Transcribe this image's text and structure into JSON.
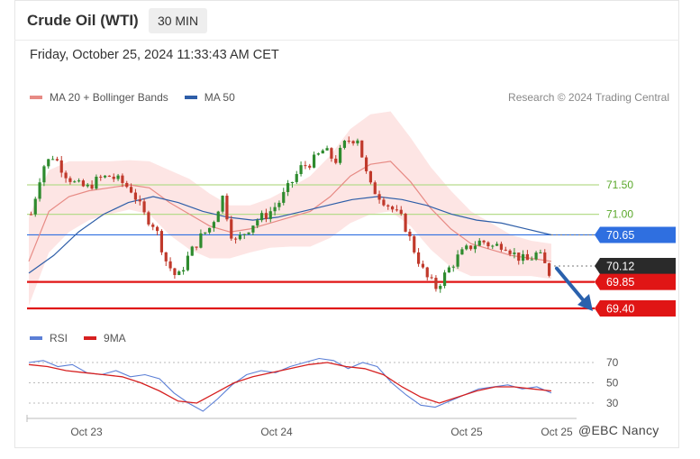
{
  "header": {
    "title": "Crude Oil (WTI)",
    "timeframe": "30 MIN",
    "datetime": "Friday, October 25, 2024 11:33:43 AM CET",
    "credit": "Research © 2024 Trading Central"
  },
  "legend": {
    "ma20": "MA 20 + Bollinger Bands",
    "ma50": "MA 50",
    "ma20_color": "#e78b85",
    "ma50_color": "#2e5ea8"
  },
  "colors": {
    "up": "#2e8b2e",
    "down": "#c0392b",
    "band": "#fde0df",
    "resistance": "#b6dc8c",
    "pivot": "#2f6fe0",
    "support": "#e01515",
    "arrow": "#2a61ad",
    "rsi": "#5b7fd6",
    "rsi_ma": "#d62020",
    "price_tag": "#2a2a2a"
  },
  "chart_data": {
    "type": "candlestick",
    "price": {
      "levels": [
        {
          "value": 71.5,
          "label": "71.50",
          "kind": "resistance"
        },
        {
          "value": 71.0,
          "label": "71.00",
          "kind": "resistance"
        },
        {
          "value": 70.65,
          "label": "70.65",
          "kind": "pivot"
        },
        {
          "value": 70.12,
          "label": "70.12",
          "kind": "last-price"
        },
        {
          "value": 69.85,
          "label": "69.85",
          "kind": "support"
        },
        {
          "value": 69.4,
          "label": "69.40",
          "kind": "support"
        }
      ],
      "ylim": [
        69.2,
        72.6
      ],
      "close_path": [
        71.0,
        71.8,
        72.0,
        71.7,
        71.5,
        71.45,
        71.6,
        71.65,
        71.55,
        71.4,
        71.0,
        70.8,
        70.2,
        69.9,
        70.3,
        70.6,
        70.8,
        71.3,
        70.5,
        70.7,
        70.9,
        71.0,
        71.2,
        71.5,
        71.8,
        71.9,
        72.1,
        71.9,
        72.25,
        72.3,
        71.5,
        71.3,
        71.1,
        70.9,
        70.4,
        69.95,
        69.75,
        70.05,
        70.3,
        70.45,
        70.55,
        70.45,
        70.5,
        70.3,
        70.2,
        70.35,
        70.0
      ],
      "ma20_path": [
        70.2,
        71.05,
        71.3,
        71.4,
        71.45,
        71.5,
        71.45,
        71.2,
        71.0,
        70.8,
        70.7,
        70.75,
        70.85,
        70.95,
        71.05,
        71.3,
        71.65,
        71.85,
        71.9,
        71.55,
        71.1,
        70.75,
        70.5,
        70.4,
        70.3,
        70.25,
        70.2
      ],
      "ma50_path": [
        70.0,
        70.3,
        70.7,
        71.0,
        71.2,
        71.3,
        71.2,
        71.05,
        70.95,
        70.9,
        70.95,
        71.05,
        71.15,
        71.25,
        71.3,
        71.25,
        71.15,
        71.0,
        70.9,
        70.85,
        70.75,
        70.65
      ],
      "arrow": {
        "from": 70.05,
        "to": 69.4,
        "direction": "down"
      }
    },
    "rsi": {
      "legend": {
        "rsi": "RSI",
        "ma": "9MA"
      },
      "levels": [
        70,
        50,
        30
      ],
      "ylim": [
        20,
        78
      ],
      "rsi_path": [
        70,
        72,
        66,
        68,
        60,
        58,
        62,
        56,
        58,
        54,
        40,
        30,
        22,
        34,
        48,
        58,
        62,
        60,
        66,
        70,
        74,
        72,
        64,
        70,
        66,
        50,
        38,
        28,
        26,
        32,
        38,
        44,
        46,
        48,
        44,
        46,
        40
      ],
      "ma_path": [
        68,
        66,
        62,
        60,
        58,
        56,
        50,
        42,
        32,
        30,
        40,
        50,
        56,
        60,
        64,
        68,
        70,
        66,
        64,
        58,
        46,
        36,
        30,
        36,
        42,
        46,
        46,
        44,
        42
      ]
    },
    "x_ticks": [
      "Oct 23",
      "Oct 24",
      "Oct 25",
      "Oct 25"
    ],
    "grid": false
  },
  "watermark": "@EBC Nancy"
}
